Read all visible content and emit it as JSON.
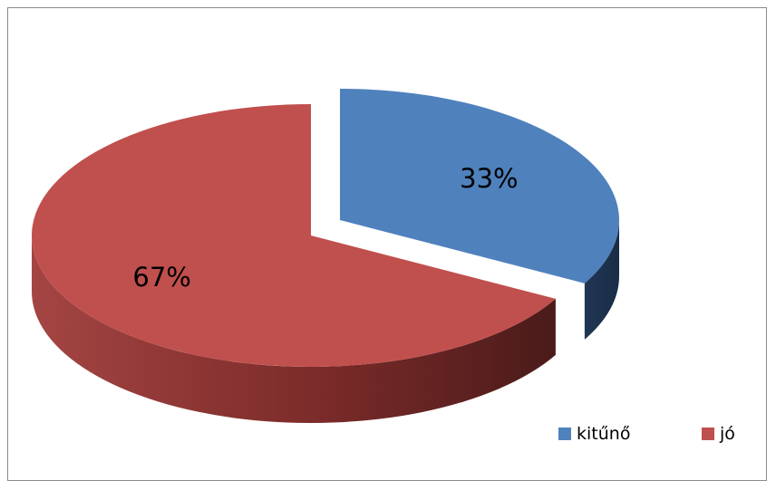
{
  "chart_data": {
    "type": "pie",
    "style": "3d-exploded",
    "categories": [
      "kitűnő",
      "jó"
    ],
    "values": [
      33,
      67
    ],
    "value_labels": [
      "33%",
      "67%"
    ],
    "colors": [
      "#4F81BD",
      "#C0504D"
    ],
    "title": "",
    "legend": {
      "position": "bottom-right",
      "entries": [
        "kitűnő",
        "jó"
      ]
    }
  }
}
